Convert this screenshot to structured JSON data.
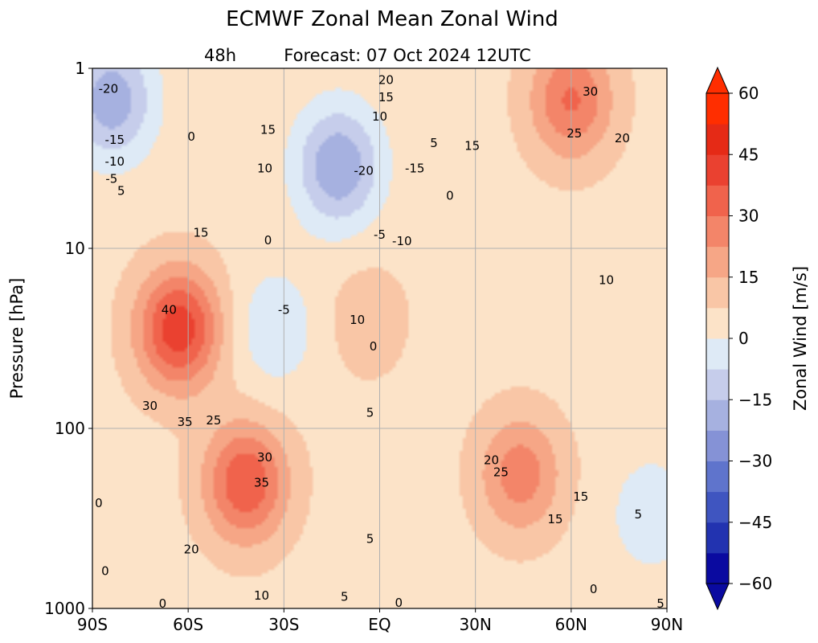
{
  "title": "ECMWF Zonal Mean Zonal Wind",
  "subtitle_left": "48h",
  "subtitle_center": "Forecast:  07 Oct 2024  12UTC",
  "chart_data": {
    "type": "heatmap",
    "title": "ECMWF Zonal Mean Zonal Wind",
    "xlabel": "",
    "ylabel": "Pressure [hPa]",
    "x_ticks": [
      "90S",
      "60S",
      "30S",
      "EQ",
      "30N",
      "60N",
      "90N"
    ],
    "x_values": [
      -90,
      -60,
      -30,
      0,
      30,
      60,
      90
    ],
    "xlim": [
      -90,
      90
    ],
    "y_ticks": [
      "1",
      "10",
      "100",
      "1000"
    ],
    "y_values": [
      1,
      10,
      100,
      1000
    ],
    "ylim": [
      1000,
      1
    ],
    "y_scale": "log",
    "grid": true,
    "colorbar": {
      "label": "Zonal Wind [m/s]",
      "ticks": [
        "60",
        "45",
        "30",
        "15",
        "0",
        "−15",
        "−30",
        "−45",
        "−60"
      ],
      "tick_values": [
        60,
        45,
        30,
        15,
        0,
        -15,
        -30,
        -45,
        -60
      ],
      "range": [
        -60,
        60
      ],
      "extend": "both",
      "negative_colors": [
        "#0a0aa0",
        "#2233b0",
        "#3f55c0",
        "#5f74cc",
        "#8592d6",
        "#a6b1e0",
        "#c6cdeb",
        "#deeaf6"
      ],
      "positive_colors": [
        "#fce3c8",
        "#f9c6a6",
        "#f6a686",
        "#f38569",
        "#f0634c",
        "#ea4130",
        "#e52a16",
        "#ff2e00"
      ]
    },
    "wind_centers": [
      {
        "lat": -84,
        "pressure": 1.5,
        "value": -20
      },
      {
        "lat": -63,
        "pressure": 28,
        "value": 43
      },
      {
        "lat": -42,
        "pressure": 200,
        "value": 37
      },
      {
        "lat": -13,
        "pressure": 3.5,
        "value": -22
      },
      {
        "lat": -4,
        "pressure": 25,
        "value": 12
      },
      {
        "lat": -33,
        "pressure": 28,
        "value": -6
      },
      {
        "lat": 44,
        "pressure": 180,
        "value": 27
      },
      {
        "lat": 60,
        "pressure": 1.5,
        "value": 31
      },
      {
        "lat": 85,
        "pressure": 300,
        "value": -5
      }
    ],
    "contour_labels": [
      {
        "text": "-20",
        "lat": -85,
        "p": 1.3
      },
      {
        "text": "-15",
        "lat": -83,
        "p": 2.5
      },
      {
        "text": "-10",
        "lat": -83,
        "p": 3.3
      },
      {
        "text": "-5",
        "lat": -84,
        "p": 4.1
      },
      {
        "text": "5",
        "lat": -81,
        "p": 4.8
      },
      {
        "text": "0",
        "lat": -59,
        "p": 2.4
      },
      {
        "text": "15",
        "lat": -56,
        "p": 8.2
      },
      {
        "text": "40",
        "lat": -66,
        "p": 22
      },
      {
        "text": "30",
        "lat": -72,
        "p": 75
      },
      {
        "text": "35",
        "lat": -61,
        "p": 92
      },
      {
        "text": "25",
        "lat": -52,
        "p": 90
      },
      {
        "text": "15",
        "lat": -35,
        "p": 2.2
      },
      {
        "text": "10",
        "lat": -36,
        "p": 3.6
      },
      {
        "text": "0",
        "lat": -35,
        "p": 9
      },
      {
        "text": "-5",
        "lat": -30,
        "p": 22
      },
      {
        "text": "30",
        "lat": -36,
        "p": 145
      },
      {
        "text": "35",
        "lat": -37,
        "p": 200
      },
      {
        "text": "20",
        "lat": -59,
        "p": 470
      },
      {
        "text": "10",
        "lat": -37,
        "p": 850
      },
      {
        "text": "0",
        "lat": -88,
        "p": 260
      },
      {
        "text": "0",
        "lat": -86,
        "p": 620
      },
      {
        "text": "0",
        "lat": -68,
        "p": 940
      },
      {
        "text": "20",
        "lat": 2,
        "p": 1.16
      },
      {
        "text": "15",
        "lat": 2,
        "p": 1.45
      },
      {
        "text": "10",
        "lat": 0,
        "p": 1.85
      },
      {
        "text": "5",
        "lat": 17,
        "p": 2.6
      },
      {
        "text": "-20",
        "lat": -5,
        "p": 3.7
      },
      {
        "text": "-15",
        "lat": 11,
        "p": 3.6
      },
      {
        "text": "0",
        "lat": 22,
        "p": 5.1
      },
      {
        "text": "-5",
        "lat": 0,
        "p": 8.4
      },
      {
        "text": "-10",
        "lat": 7,
        "p": 9.1
      },
      {
        "text": "10",
        "lat": -7,
        "p": 25
      },
      {
        "text": "0",
        "lat": -2,
        "p": 35
      },
      {
        "text": "5",
        "lat": -3,
        "p": 82
      },
      {
        "text": "5",
        "lat": -3,
        "p": 410
      },
      {
        "text": "5",
        "lat": -11,
        "p": 860
      },
      {
        "text": "0",
        "lat": 6,
        "p": 930
      },
      {
        "text": "15",
        "lat": 29,
        "p": 2.7
      },
      {
        "text": "30",
        "lat": 66,
        "p": 1.35
      },
      {
        "text": "25",
        "lat": 61,
        "p": 2.3
      },
      {
        "text": "20",
        "lat": 76,
        "p": 2.45
      },
      {
        "text": "10",
        "lat": 71,
        "p": 15
      },
      {
        "text": "20",
        "lat": 35,
        "p": 150
      },
      {
        "text": "25",
        "lat": 38,
        "p": 175
      },
      {
        "text": "15",
        "lat": 63,
        "p": 240
      },
      {
        "text": "15",
        "lat": 55,
        "p": 320
      },
      {
        "text": "5",
        "lat": 81,
        "p": 300
      },
      {
        "text": "0",
        "lat": 67,
        "p": 780
      },
      {
        "text": "5",
        "lat": 88,
        "p": 940
      }
    ]
  }
}
